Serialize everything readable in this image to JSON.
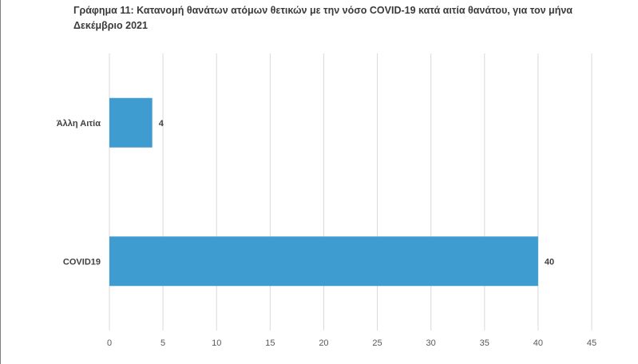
{
  "chart_data": {
    "type": "bar",
    "orientation": "horizontal",
    "title": "Γράφημα 11: Κατανομή θανάτων ατόμων θετικών με την νόσο COVID-19 κατά αιτία θανάτου, για τον μήνα Δεκέμβριο 2021",
    "categories": [
      "Άλλη Αιτία",
      "COVID19"
    ],
    "values": [
      4,
      40
    ],
    "data_labels": [
      "4",
      "40"
    ],
    "xlim": [
      0,
      45
    ],
    "x_ticks": [
      0,
      5,
      10,
      15,
      20,
      25,
      30,
      35,
      40,
      45
    ],
    "x_tick_labels": [
      "0",
      "5",
      "10",
      "15",
      "20",
      "25",
      "30",
      "35",
      "40",
      "45"
    ],
    "grid": "vertical",
    "bar_color": "#3e9cd1",
    "grid_color": "#d9d9d9"
  }
}
